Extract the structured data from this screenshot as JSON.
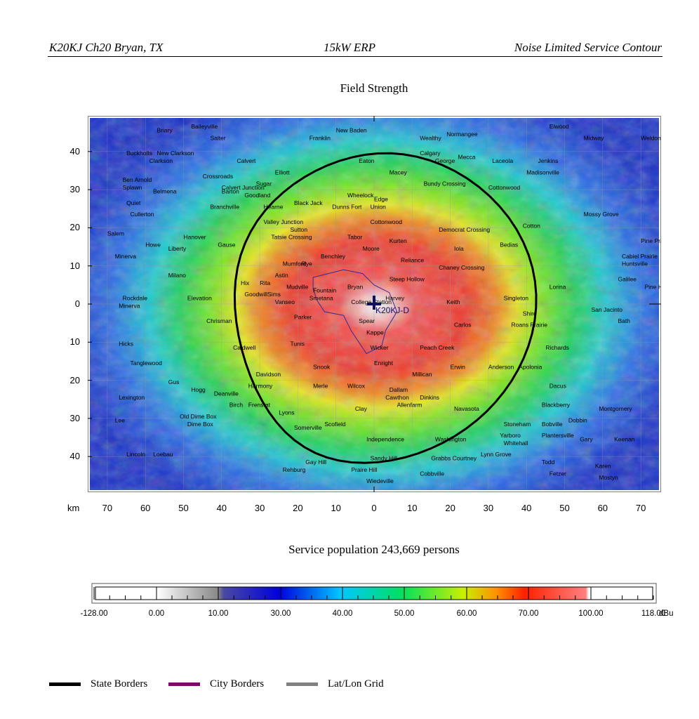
{
  "header": {
    "left": "K20KJ  Ch20 Bryan, TX",
    "center": "15kW ERP",
    "right": "Noise Limited Service Contour"
  },
  "map": {
    "title": "Field Strength",
    "axis_unit": "km",
    "y_tick_labels": [
      "40",
      "30",
      "20",
      "10",
      "0",
      "10",
      "20",
      "30",
      "40"
    ],
    "x_tick_labels": [
      "70",
      "60",
      "50",
      "40",
      "30",
      "20",
      "10",
      "0",
      "10",
      "20",
      "30",
      "40",
      "50",
      "60",
      "70"
    ],
    "station_label": "K20KJ-D",
    "places": [
      {
        "name": "Buckholts",
        "x": -65,
        "y": 39
      },
      {
        "name": "New Clarkson",
        "x": -57,
        "y": 39
      },
      {
        "name": "Briary",
        "x": -57,
        "y": 45
      },
      {
        "name": "Baileyville",
        "x": -48,
        "y": 46
      },
      {
        "name": "Salter",
        "x": -43,
        "y": 43
      },
      {
        "name": "Clarkson",
        "x": -59,
        "y": 37
      },
      {
        "name": "Ben Arnold",
        "x": -66,
        "y": 32
      },
      {
        "name": "Crossroads",
        "x": -45,
        "y": 33
      },
      {
        "name": "Calvert",
        "x": -36,
        "y": 37
      },
      {
        "name": "Calvert Junction",
        "x": -40,
        "y": 30
      },
      {
        "name": "Elliott",
        "x": -26,
        "y": 34
      },
      {
        "name": "Barton",
        "x": -40,
        "y": 29
      },
      {
        "name": "Sugar",
        "x": -31,
        "y": 31
      },
      {
        "name": "Goodland",
        "x": -34,
        "y": 28
      },
      {
        "name": "Branchville",
        "x": -43,
        "y": 25
      },
      {
        "name": "Hearne",
        "x": -29,
        "y": 25
      },
      {
        "name": "Black Jack",
        "x": -21,
        "y": 26
      },
      {
        "name": "Valley Junction",
        "x": -29,
        "y": 21
      },
      {
        "name": "Sutton",
        "x": -22,
        "y": 19
      },
      {
        "name": "Tatsie Crossing",
        "x": -27,
        "y": 17
      },
      {
        "name": "Splawn",
        "x": -66,
        "y": 30
      },
      {
        "name": "Belmena",
        "x": -58,
        "y": 29
      },
      {
        "name": "Quiet",
        "x": -65,
        "y": 26
      },
      {
        "name": "Cullerton",
        "x": -64,
        "y": 23
      },
      {
        "name": "Salem",
        "x": -70,
        "y": 18
      },
      {
        "name": "Hanover",
        "x": -50,
        "y": 17
      },
      {
        "name": "Howe",
        "x": -60,
        "y": 15
      },
      {
        "name": "Liberty",
        "x": -54,
        "y": 14
      },
      {
        "name": "Gause",
        "x": -41,
        "y": 15
      },
      {
        "name": "Minerva",
        "x": -68,
        "y": 12
      },
      {
        "name": "Milano",
        "x": -54,
        "y": 7
      },
      {
        "name": "Mumford",
        "x": -24,
        "y": 10
      },
      {
        "name": "Rye",
        "x": -19,
        "y": 10
      },
      {
        "name": "Benchley",
        "x": -14,
        "y": 12
      },
      {
        "name": "Astin",
        "x": -26,
        "y": 7
      },
      {
        "name": "Hix",
        "x": -35,
        "y": 5
      },
      {
        "name": "Rita",
        "x": -30,
        "y": 5
      },
      {
        "name": "Mudville",
        "x": -23,
        "y": 4
      },
      {
        "name": "Fountain",
        "x": -16,
        "y": 3
      },
      {
        "name": "Sims",
        "x": -28,
        "y": 2
      },
      {
        "name": "Goodwill",
        "x": -34,
        "y": 2
      },
      {
        "name": "Smetana",
        "x": -17,
        "y": 1
      },
      {
        "name": "Vanseo",
        "x": -26,
        "y": 0
      },
      {
        "name": "Rockdale",
        "x": -66,
        "y": 1
      },
      {
        "name": "Minerva",
        "x": -67,
        "y": -1
      },
      {
        "name": "Elevation",
        "x": -49,
        "y": 1
      },
      {
        "name": "Parker",
        "x": -21,
        "y": -4
      },
      {
        "name": "Chrisman",
        "x": -44,
        "y": -5
      },
      {
        "name": "Tunis",
        "x": -22,
        "y": -11
      },
      {
        "name": "Caldwell",
        "x": -37,
        "y": -12
      },
      {
        "name": "Hicks",
        "x": -67,
        "y": -11
      },
      {
        "name": "Tanglewood",
        "x": -64,
        "y": -16
      },
      {
        "name": "Davidson",
        "x": -31,
        "y": -19
      },
      {
        "name": "Snook",
        "x": -16,
        "y": -17
      },
      {
        "name": "Harmony",
        "x": -33,
        "y": -22
      },
      {
        "name": "Merle",
        "x": -16,
        "y": -22
      },
      {
        "name": "Wilcox",
        "x": -7,
        "y": -22
      },
      {
        "name": "Gus",
        "x": -54,
        "y": -21
      },
      {
        "name": "Hogg",
        "x": -48,
        "y": -23
      },
      {
        "name": "Deanville",
        "x": -42,
        "y": -24
      },
      {
        "name": "Lexington",
        "x": -67,
        "y": -25
      },
      {
        "name": "Birch",
        "x": -38,
        "y": -27
      },
      {
        "name": "Frenstat",
        "x": -33,
        "y": -27
      },
      {
        "name": "Lyons",
        "x": -25,
        "y": -29
      },
      {
        "name": "Lee",
        "x": -68,
        "y": -31
      },
      {
        "name": "Old Dime Box",
        "x": -51,
        "y": -30
      },
      {
        "name": "Dime Box",
        "x": -49,
        "y": -32
      },
      {
        "name": "Somerville",
        "x": -21,
        "y": -33
      },
      {
        "name": "Scofield",
        "x": -13,
        "y": -32
      },
      {
        "name": "Lincoln",
        "x": -65,
        "y": -40
      },
      {
        "name": "Loebau",
        "x": -58,
        "y": -40
      },
      {
        "name": "Gay Hill",
        "x": -18,
        "y": -42
      },
      {
        "name": "Rehburg",
        "x": -24,
        "y": -44
      },
      {
        "name": "Praire Hill",
        "x": -6,
        "y": -44
      },
      {
        "name": "Wiedeville",
        "x": -2,
        "y": -47
      },
      {
        "name": "New Baden",
        "x": -10,
        "y": 45
      },
      {
        "name": "Franklin",
        "x": -17,
        "y": 43
      },
      {
        "name": "Wealthy",
        "x": 12,
        "y": 43
      },
      {
        "name": "Normangee",
        "x": 19,
        "y": 44
      },
      {
        "name": "Calgary",
        "x": 12,
        "y": 39
      },
      {
        "name": "Mecca",
        "x": 22,
        "y": 38
      },
      {
        "name": "George",
        "x": 16,
        "y": 37
      },
      {
        "name": "Eaton",
        "x": -4,
        "y": 37
      },
      {
        "name": "Macey",
        "x": 4,
        "y": 34
      },
      {
        "name": "Bundy Crossing",
        "x": 13,
        "y": 31
      },
      {
        "name": "Wheelock",
        "x": -7,
        "y": 28
      },
      {
        "name": "Edge",
        "x": 0,
        "y": 27
      },
      {
        "name": "Dunns Fort",
        "x": -11,
        "y": 25
      },
      {
        "name": "Union",
        "x": -1,
        "y": 25
      },
      {
        "name": "Cottonwood",
        "x": -1,
        "y": 21
      },
      {
        "name": "Democrat Crossing",
        "x": 17,
        "y": 19
      },
      {
        "name": "Tabor",
        "x": -7,
        "y": 17
      },
      {
        "name": "Kurten",
        "x": 4,
        "y": 16
      },
      {
        "name": "Moore",
        "x": -3,
        "y": 14
      },
      {
        "name": "Iola",
        "x": 21,
        "y": 14
      },
      {
        "name": "Reliance",
        "x": 7,
        "y": 11
      },
      {
        "name": "Chaney Crossing",
        "x": 17,
        "y": 9
      },
      {
        "name": "Steep Hollow",
        "x": 4,
        "y": 6
      },
      {
        "name": "Bryan",
        "x": -7,
        "y": 4
      },
      {
        "name": "Harvey",
        "x": 3,
        "y": 1
      },
      {
        "name": "College Station",
        "x": -6,
        "y": 0
      },
      {
        "name": "Keith",
        "x": 19,
        "y": 0
      },
      {
        "name": "Spear",
        "x": -4,
        "y": -5
      },
      {
        "name": "Carlos",
        "x": 21,
        "y": -6
      },
      {
        "name": "Kappe",
        "x": -2,
        "y": -8
      },
      {
        "name": "Wicker",
        "x": -1,
        "y": -12
      },
      {
        "name": "Peach Creek",
        "x": 12,
        "y": -12
      },
      {
        "name": "Enright",
        "x": 0,
        "y": -16
      },
      {
        "name": "Erwin",
        "x": 20,
        "y": -17
      },
      {
        "name": "Millican",
        "x": 10,
        "y": -19
      },
      {
        "name": "Dallam",
        "x": 4,
        "y": -23
      },
      {
        "name": "Cawthon",
        "x": 3,
        "y": -25
      },
      {
        "name": "Dinkins",
        "x": 12,
        "y": -25
      },
      {
        "name": "Allenfarm",
        "x": 6,
        "y": -27
      },
      {
        "name": "Clay",
        "x": -5,
        "y": -28
      },
      {
        "name": "Navasota",
        "x": 21,
        "y": -28
      },
      {
        "name": "Washington",
        "x": 16,
        "y": -36
      },
      {
        "name": "Independence",
        "x": -2,
        "y": -36
      },
      {
        "name": "Sandy Hill",
        "x": -1,
        "y": -41
      },
      {
        "name": "Grabbs Courtney",
        "x": 15,
        "y": -41
      },
      {
        "name": "Lynn Grove",
        "x": 28,
        "y": -40
      },
      {
        "name": "Cobbville",
        "x": 12,
        "y": -45
      },
      {
        "name": "Elwood",
        "x": 46,
        "y": 46
      },
      {
        "name": "Midway",
        "x": 55,
        "y": 43
      },
      {
        "name": "Weldon",
        "x": 70,
        "y": 43
      },
      {
        "name": "Laceola",
        "x": 31,
        "y": 37
      },
      {
        "name": "Jenkins",
        "x": 43,
        "y": 37
      },
      {
        "name": "Madisonville",
        "x": 40,
        "y": 34
      },
      {
        "name": "Cottonwood",
        "x": 30,
        "y": 30
      },
      {
        "name": "Mossy Grove",
        "x": 55,
        "y": 23
      },
      {
        "name": "Cotton",
        "x": 39,
        "y": 20
      },
      {
        "name": "Bedias",
        "x": 33,
        "y": 15
      },
      {
        "name": "Pine Prairie",
        "x": 70,
        "y": 16
      },
      {
        "name": "Cabiel Prairie",
        "x": 65,
        "y": 12
      },
      {
        "name": "Huntsville",
        "x": 65,
        "y": 10
      },
      {
        "name": "Galilee",
        "x": 64,
        "y": 6
      },
      {
        "name": "Pine Hill",
        "x": 71,
        "y": 4
      },
      {
        "name": "Lorina",
        "x": 46,
        "y": 4
      },
      {
        "name": "Singleton",
        "x": 34,
        "y": 1
      },
      {
        "name": "San Jacinto",
        "x": 57,
        "y": -2
      },
      {
        "name": "Shiro",
        "x": 39,
        "y": -3
      },
      {
        "name": "Roans Prairie",
        "x": 36,
        "y": -6
      },
      {
        "name": "Bath",
        "x": 64,
        "y": -5
      },
      {
        "name": "Richards",
        "x": 45,
        "y": -12
      },
      {
        "name": "Anderson",
        "x": 30,
        "y": -17
      },
      {
        "name": "Apolonia",
        "x": 38,
        "y": -17
      },
      {
        "name": "Dacus",
        "x": 46,
        "y": -22
      },
      {
        "name": "Blackberry",
        "x": 44,
        "y": -27
      },
      {
        "name": "Montgomery",
        "x": 59,
        "y": -28
      },
      {
        "name": "Stoneham",
        "x": 34,
        "y": -32
      },
      {
        "name": "Bobville",
        "x": 44,
        "y": -32
      },
      {
        "name": "Dobbin",
        "x": 51,
        "y": -31
      },
      {
        "name": "Yarboro",
        "x": 33,
        "y": -35
      },
      {
        "name": "Plantersville",
        "x": 44,
        "y": -35
      },
      {
        "name": "Gary",
        "x": 54,
        "y": -36
      },
      {
        "name": "Keenan",
        "x": 63,
        "y": -36
      },
      {
        "name": "Whitehall",
        "x": 34,
        "y": -37
      },
      {
        "name": "Todd",
        "x": 44,
        "y": -42
      },
      {
        "name": "Karen",
        "x": 58,
        "y": -43
      },
      {
        "name": "Fetzer",
        "x": 46,
        "y": -45
      },
      {
        "name": "Mostyn",
        "x": 59,
        "y": -46
      }
    ]
  },
  "population": "Service population 243,669 persons",
  "scale": {
    "labels": [
      "-128.00",
      "0.00",
      "10.00",
      "30.00",
      "40.00",
      "50.00",
      "60.00",
      "70.00",
      "100.00",
      "118.00"
    ],
    "unit": "dBu"
  },
  "legend": [
    {
      "label": "State Borders",
      "color": "#000000"
    },
    {
      "label": "City Borders",
      "color": "#7a0a6a"
    },
    {
      "label": "Lat/Lon Grid",
      "color": "#808080"
    }
  ],
  "colors": {
    "contour": "#000000",
    "city_border": "#3b2a8c",
    "station": "#101060"
  }
}
